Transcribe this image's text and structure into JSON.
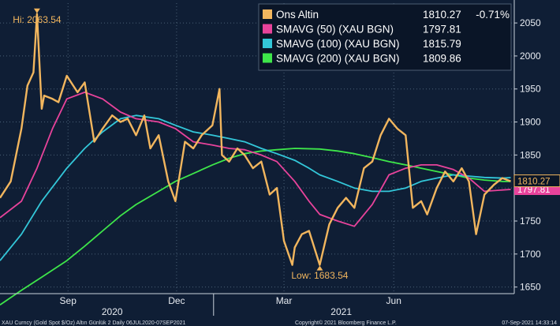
{
  "chart_data": {
    "type": "line",
    "title": "",
    "ylim": [
      1640,
      2080
    ],
    "y_ticks": [
      1650,
      1700,
      1750,
      1800,
      1850,
      1900,
      1950,
      2000,
      2050
    ],
    "x_ticks": [
      "Sep",
      "Dec",
      "Mar",
      "Jun"
    ],
    "year_labels": [
      "2020",
      "2021"
    ],
    "grid": true,
    "legend_placement": "top-right",
    "series": [
      {
        "name": "Ons Altin",
        "color": "#f2b65e",
        "x": [
          "2020-07-06",
          "2020-07-15",
          "2020-07-24",
          "2020-07-29",
          "2020-08-03",
          "2020-08-06",
          "2020-08-10",
          "2020-08-12",
          "2020-08-19",
          "2020-08-24",
          "2020-08-31",
          "2020-09-09",
          "2020-09-15",
          "2020-09-23",
          "2020-09-30",
          "2020-10-08",
          "2020-10-15",
          "2020-10-21",
          "2020-10-28",
          "2020-11-04",
          "2020-11-09",
          "2020-11-16",
          "2020-11-24",
          "2020-11-30",
          "2020-12-08",
          "2020-12-15",
          "2020-12-22",
          "2020-12-31",
          "2021-01-06",
          "2021-01-08",
          "2021-01-14",
          "2021-01-21",
          "2021-01-27",
          "2021-02-03",
          "2021-02-10",
          "2021-02-17",
          "2021-02-23",
          "2021-03-01",
          "2021-03-08",
          "2021-03-10",
          "2021-03-16",
          "2021-03-22",
          "2021-03-31",
          "2021-04-08",
          "2021-04-15",
          "2021-04-22",
          "2021-04-29",
          "2021-05-07",
          "2021-05-14",
          "2021-05-21",
          "2021-05-28",
          "2021-06-04",
          "2021-06-11",
          "2021-06-17",
          "2021-06-24",
          "2021-06-29",
          "2021-07-07",
          "2021-07-14",
          "2021-07-21",
          "2021-07-28",
          "2021-08-03",
          "2021-08-09",
          "2021-08-16",
          "2021-08-24",
          "2021-08-31",
          "2021-09-07"
        ],
        "values": [
          1785,
          1810,
          1890,
          1955,
          1975,
          2063.54,
          1920,
          1940,
          1935,
          1930,
          1970,
          1945,
          1960,
          1870,
          1890,
          1910,
          1900,
          1905,
          1880,
          1910,
          1860,
          1880,
          1810,
          1780,
          1870,
          1860,
          1880,
          1895,
          1950,
          1850,
          1840,
          1860,
          1850,
          1830,
          1840,
          1790,
          1800,
          1720,
          1683.54,
          1710,
          1730,
          1735,
          1683.54,
          1745,
          1770,
          1785,
          1770,
          1830,
          1840,
          1880,
          1905,
          1890,
          1880,
          1770,
          1780,
          1760,
          1800,
          1825,
          1810,
          1830,
          1810,
          1730,
          1790,
          1805,
          1815,
          1810.27
        ]
      },
      {
        "name": "SMAVG (50) (XAU BGN)",
        "color": "#e8439b",
        "x": [
          "2020-07-06",
          "2020-07-24",
          "2020-08-06",
          "2020-08-19",
          "2020-08-31",
          "2020-09-15",
          "2020-09-30",
          "2020-10-15",
          "2020-10-28",
          "2020-11-16",
          "2020-11-30",
          "2020-12-15",
          "2020-12-31",
          "2021-01-14",
          "2021-01-27",
          "2021-02-10",
          "2021-02-23",
          "2021-03-10",
          "2021-03-22",
          "2021-03-31",
          "2021-04-15",
          "2021-04-29",
          "2021-05-14",
          "2021-05-28",
          "2021-06-11",
          "2021-06-24",
          "2021-07-07",
          "2021-07-21",
          "2021-08-03",
          "2021-08-16",
          "2021-08-31",
          "2021-09-07"
        ],
        "values": [
          1755,
          1780,
          1830,
          1890,
          1935,
          1945,
          1935,
          1915,
          1905,
          1900,
          1890,
          1870,
          1865,
          1860,
          1858,
          1850,
          1840,
          1810,
          1780,
          1760,
          1750,
          1742,
          1775,
          1820,
          1830,
          1835,
          1835,
          1828,
          1815,
          1795,
          1797,
          1797.81
        ]
      },
      {
        "name": "SMAVG (100) (XAU BGN)",
        "color": "#33c7d9",
        "x": [
          "2020-07-06",
          "2020-07-24",
          "2020-08-10",
          "2020-08-31",
          "2020-09-15",
          "2020-09-30",
          "2020-10-15",
          "2020-10-28",
          "2020-11-16",
          "2020-11-30",
          "2020-12-15",
          "2020-12-31",
          "2021-01-14",
          "2021-01-27",
          "2021-02-10",
          "2021-02-23",
          "2021-03-10",
          "2021-03-22",
          "2021-03-31",
          "2021-04-15",
          "2021-04-29",
          "2021-05-14",
          "2021-05-28",
          "2021-06-11",
          "2021-06-24",
          "2021-07-07",
          "2021-07-21",
          "2021-08-03",
          "2021-08-16",
          "2021-08-31",
          "2021-09-07"
        ],
        "values": [
          1690,
          1730,
          1780,
          1830,
          1860,
          1885,
          1905,
          1910,
          1905,
          1895,
          1885,
          1880,
          1875,
          1870,
          1860,
          1852,
          1842,
          1830,
          1820,
          1810,
          1800,
          1795,
          1795,
          1800,
          1810,
          1815,
          1820,
          1818,
          1816,
          1815,
          1815.79
        ]
      },
      {
        "name": "SMAVG (200) (XAU BGN)",
        "color": "#3ee64a",
        "x": [
          "2020-07-06",
          "2020-07-24",
          "2020-08-10",
          "2020-08-31",
          "2020-09-15",
          "2020-09-30",
          "2020-10-15",
          "2020-10-28",
          "2020-11-16",
          "2020-11-30",
          "2020-12-15",
          "2020-12-31",
          "2021-01-14",
          "2021-01-27",
          "2021-02-10",
          "2021-02-23",
          "2021-03-10",
          "2021-03-31",
          "2021-04-15",
          "2021-04-29",
          "2021-05-14",
          "2021-05-28",
          "2021-06-11",
          "2021-06-24",
          "2021-07-07",
          "2021-07-21",
          "2021-08-03",
          "2021-08-16",
          "2021-08-31",
          "2021-09-07"
        ],
        "values": [
          1623,
          1645,
          1665,
          1690,
          1712,
          1735,
          1758,
          1775,
          1795,
          1810,
          1822,
          1835,
          1845,
          1852,
          1856,
          1858,
          1860,
          1859,
          1856,
          1852,
          1846,
          1840,
          1835,
          1830,
          1825,
          1820,
          1815,
          1812,
          1810,
          1809.86
        ]
      }
    ],
    "annotations": [
      {
        "text": "Hi: 2063.54",
        "x": "2020-08-06",
        "y": 2063.54
      },
      {
        "text": "Low: 1683.54",
        "x": "2021-03-31",
        "y": 1683.54
      }
    ]
  },
  "legend": [
    {
      "name": "Ons Altin",
      "value": "1810.27",
      "change": "-0.71%",
      "color": "#f2b65e"
    },
    {
      "name": "SMAVG (50) (XAU BGN)",
      "value": "1797.81",
      "color": "#e8439b"
    },
    {
      "name": "SMAVG (100) (XAU BGN)",
      "value": "1815.79",
      "color": "#33c7d9"
    },
    {
      "name": "SMAVG (200) (XAU BGN)",
      "value": "1809.86",
      "color": "#3ee64a"
    }
  ],
  "last_price_label": "1810.27",
  "last_ma50_label": "1797.81",
  "footer": {
    "left": "XAU Curncy (Gold Spot   $/Oz) Altın Günlük 2  Daily 06JUL2020-07SEP2021",
    "center": "Copyright© 2021 Bloomberg Finance L.P.",
    "right": "07-Sep-2021  14:33:14"
  },
  "colors": {
    "background": "#0f1e35",
    "grid": "#4a6076"
  }
}
